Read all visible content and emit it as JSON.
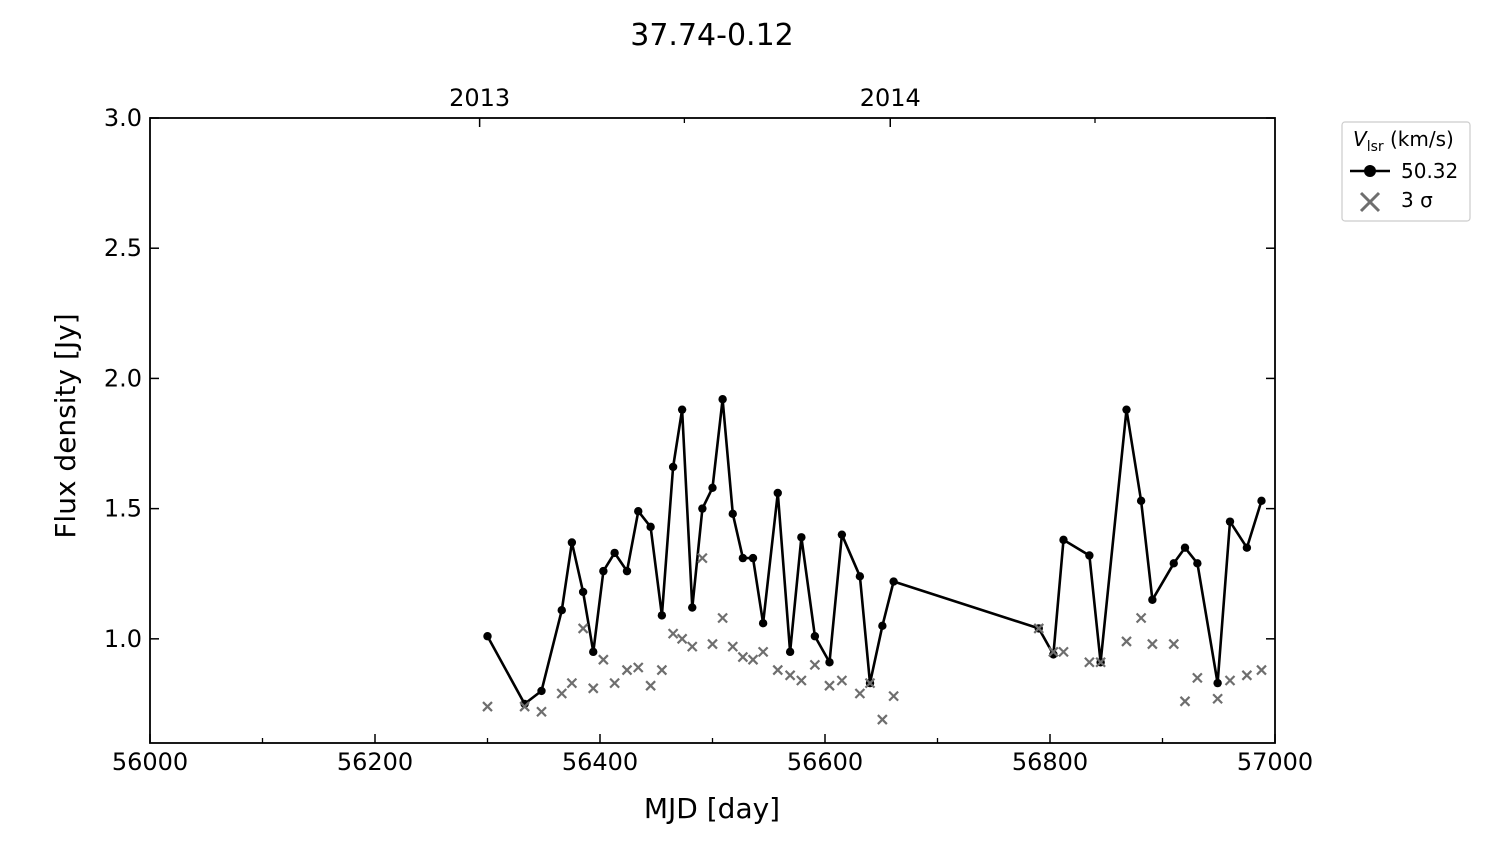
{
  "chart_data": {
    "type": "line",
    "title": "37.74-0.12",
    "xlabel": "MJD [day]",
    "ylabel": "Flux density [Jy]",
    "xlim": [
      56000,
      57000
    ],
    "ylim": [
      0.6,
      3.0
    ],
    "xticks": [
      56000,
      56200,
      56400,
      56600,
      56800,
      57000
    ],
    "xticks_minor": [
      56100,
      56300,
      56500,
      56700,
      56900
    ],
    "yticks": [
      "1.0",
      "1.5",
      "2.0",
      "2.5",
      "3.0"
    ],
    "top_axis": {
      "labels": [
        "2013",
        "2014"
      ],
      "positions": [
        56293,
        56658
      ],
      "minor_positions": [
        56475,
        56840
      ]
    },
    "legend": {
      "title_main": "V",
      "title_sub": "lsr",
      "title_rest": " (km/s)",
      "position": "outside-right-top",
      "entries": [
        "50.32",
        "3 σ"
      ]
    },
    "series": [
      {
        "name": "50.32",
        "color": "#000000",
        "marker": "circle",
        "x": [
          56300,
          56333,
          56348,
          56366,
          56375,
          56385,
          56394,
          56403,
          56413,
          56424,
          56434,
          56445,
          56455,
          56465,
          56473,
          56482,
          56491,
          56500,
          56509,
          56518,
          56527,
          56536,
          56545,
          56558,
          56569,
          56579,
          56591,
          56604,
          56615,
          56631,
          56640,
          56651,
          56661,
          56790,
          56803,
          56812,
          56835,
          56845,
          56868,
          56881,
          56891,
          56910,
          56920,
          56931,
          56949,
          56960,
          56975,
          56988
        ],
        "y": [
          1.01,
          0.75,
          0.8,
          1.11,
          1.37,
          1.18,
          0.95,
          1.26,
          1.33,
          1.26,
          1.49,
          1.43,
          1.09,
          1.66,
          1.88,
          1.12,
          1.5,
          1.58,
          1.92,
          1.48,
          1.31,
          1.31,
          1.06,
          1.56,
          0.95,
          1.39,
          1.01,
          0.91,
          1.4,
          1.24,
          0.83,
          1.05,
          1.22,
          1.04,
          0.94,
          1.38,
          1.32,
          0.91,
          1.88,
          1.53,
          1.15,
          1.29,
          1.35,
          1.29,
          0.83,
          1.45,
          1.35,
          1.53
        ]
      },
      {
        "name": "3 σ",
        "color": "#6e6e6e",
        "marker": "x",
        "x": [
          56300,
          56333,
          56348,
          56366,
          56375,
          56385,
          56394,
          56403,
          56413,
          56424,
          56434,
          56445,
          56455,
          56465,
          56473,
          56482,
          56491,
          56500,
          56509,
          56518,
          56527,
          56536,
          56545,
          56558,
          56569,
          56579,
          56591,
          56604,
          56615,
          56631,
          56640,
          56651,
          56661,
          56790,
          56803,
          56812,
          56835,
          56845,
          56868,
          56881,
          56891,
          56910,
          56920,
          56931,
          56949,
          56960,
          56975,
          56988
        ],
        "y": [
          0.74,
          0.74,
          0.72,
          0.79,
          0.83,
          1.04,
          0.81,
          0.92,
          0.83,
          0.88,
          0.89,
          0.82,
          0.88,
          1.02,
          1.0,
          0.97,
          1.31,
          0.98,
          1.08,
          0.97,
          0.93,
          0.92,
          0.95,
          0.88,
          0.86,
          0.84,
          0.9,
          0.82,
          0.84,
          0.79,
          0.83,
          0.69,
          0.78,
          1.04,
          0.95,
          0.95,
          0.91,
          0.91,
          0.99,
          1.08,
          0.98,
          0.98,
          0.76,
          0.85,
          0.77,
          0.84,
          0.86,
          0.88
        ]
      }
    ]
  }
}
